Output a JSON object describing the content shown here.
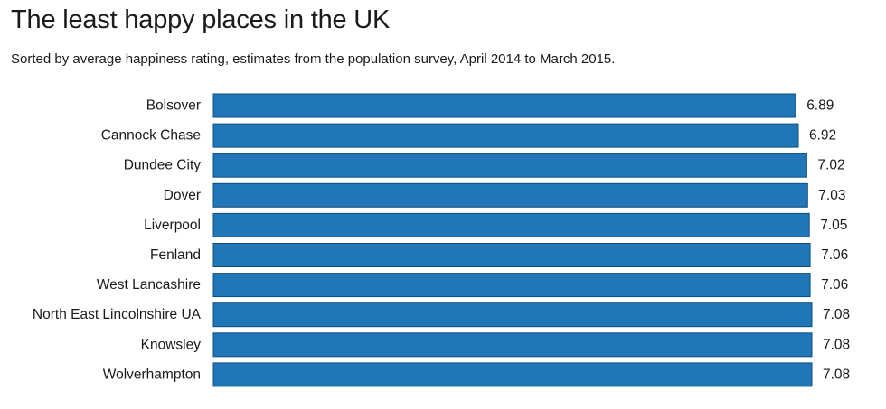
{
  "chart_data": {
    "type": "bar",
    "orientation": "horizontal",
    "title": "The least happy places in the UK",
    "subtitle": "Sorted by average happiness rating, estimates from the population survey, April 2014 to March 2015.",
    "categories": [
      "Bolsover",
      "Cannock Chase",
      "Dundee City",
      "Dover",
      "Liverpool",
      "Fenland",
      "West Lancashire",
      "North East Lincolnshire UA",
      "Knowsley",
      "Wolverhampton"
    ],
    "values": [
      6.89,
      6.92,
      7.02,
      7.03,
      7.05,
      7.06,
      7.06,
      7.08,
      7.08,
      7.08
    ],
    "value_labels": [
      "6.89",
      "6.92",
      "7.02",
      "7.03",
      "7.05",
      "7.06",
      "7.06",
      "7.08",
      "7.08",
      "7.08"
    ],
    "xlim": [
      0,
      7.08
    ],
    "grid": false,
    "legend": "none",
    "bar_color": "#2176b8",
    "bar_border_color": "#0d4f80"
  }
}
